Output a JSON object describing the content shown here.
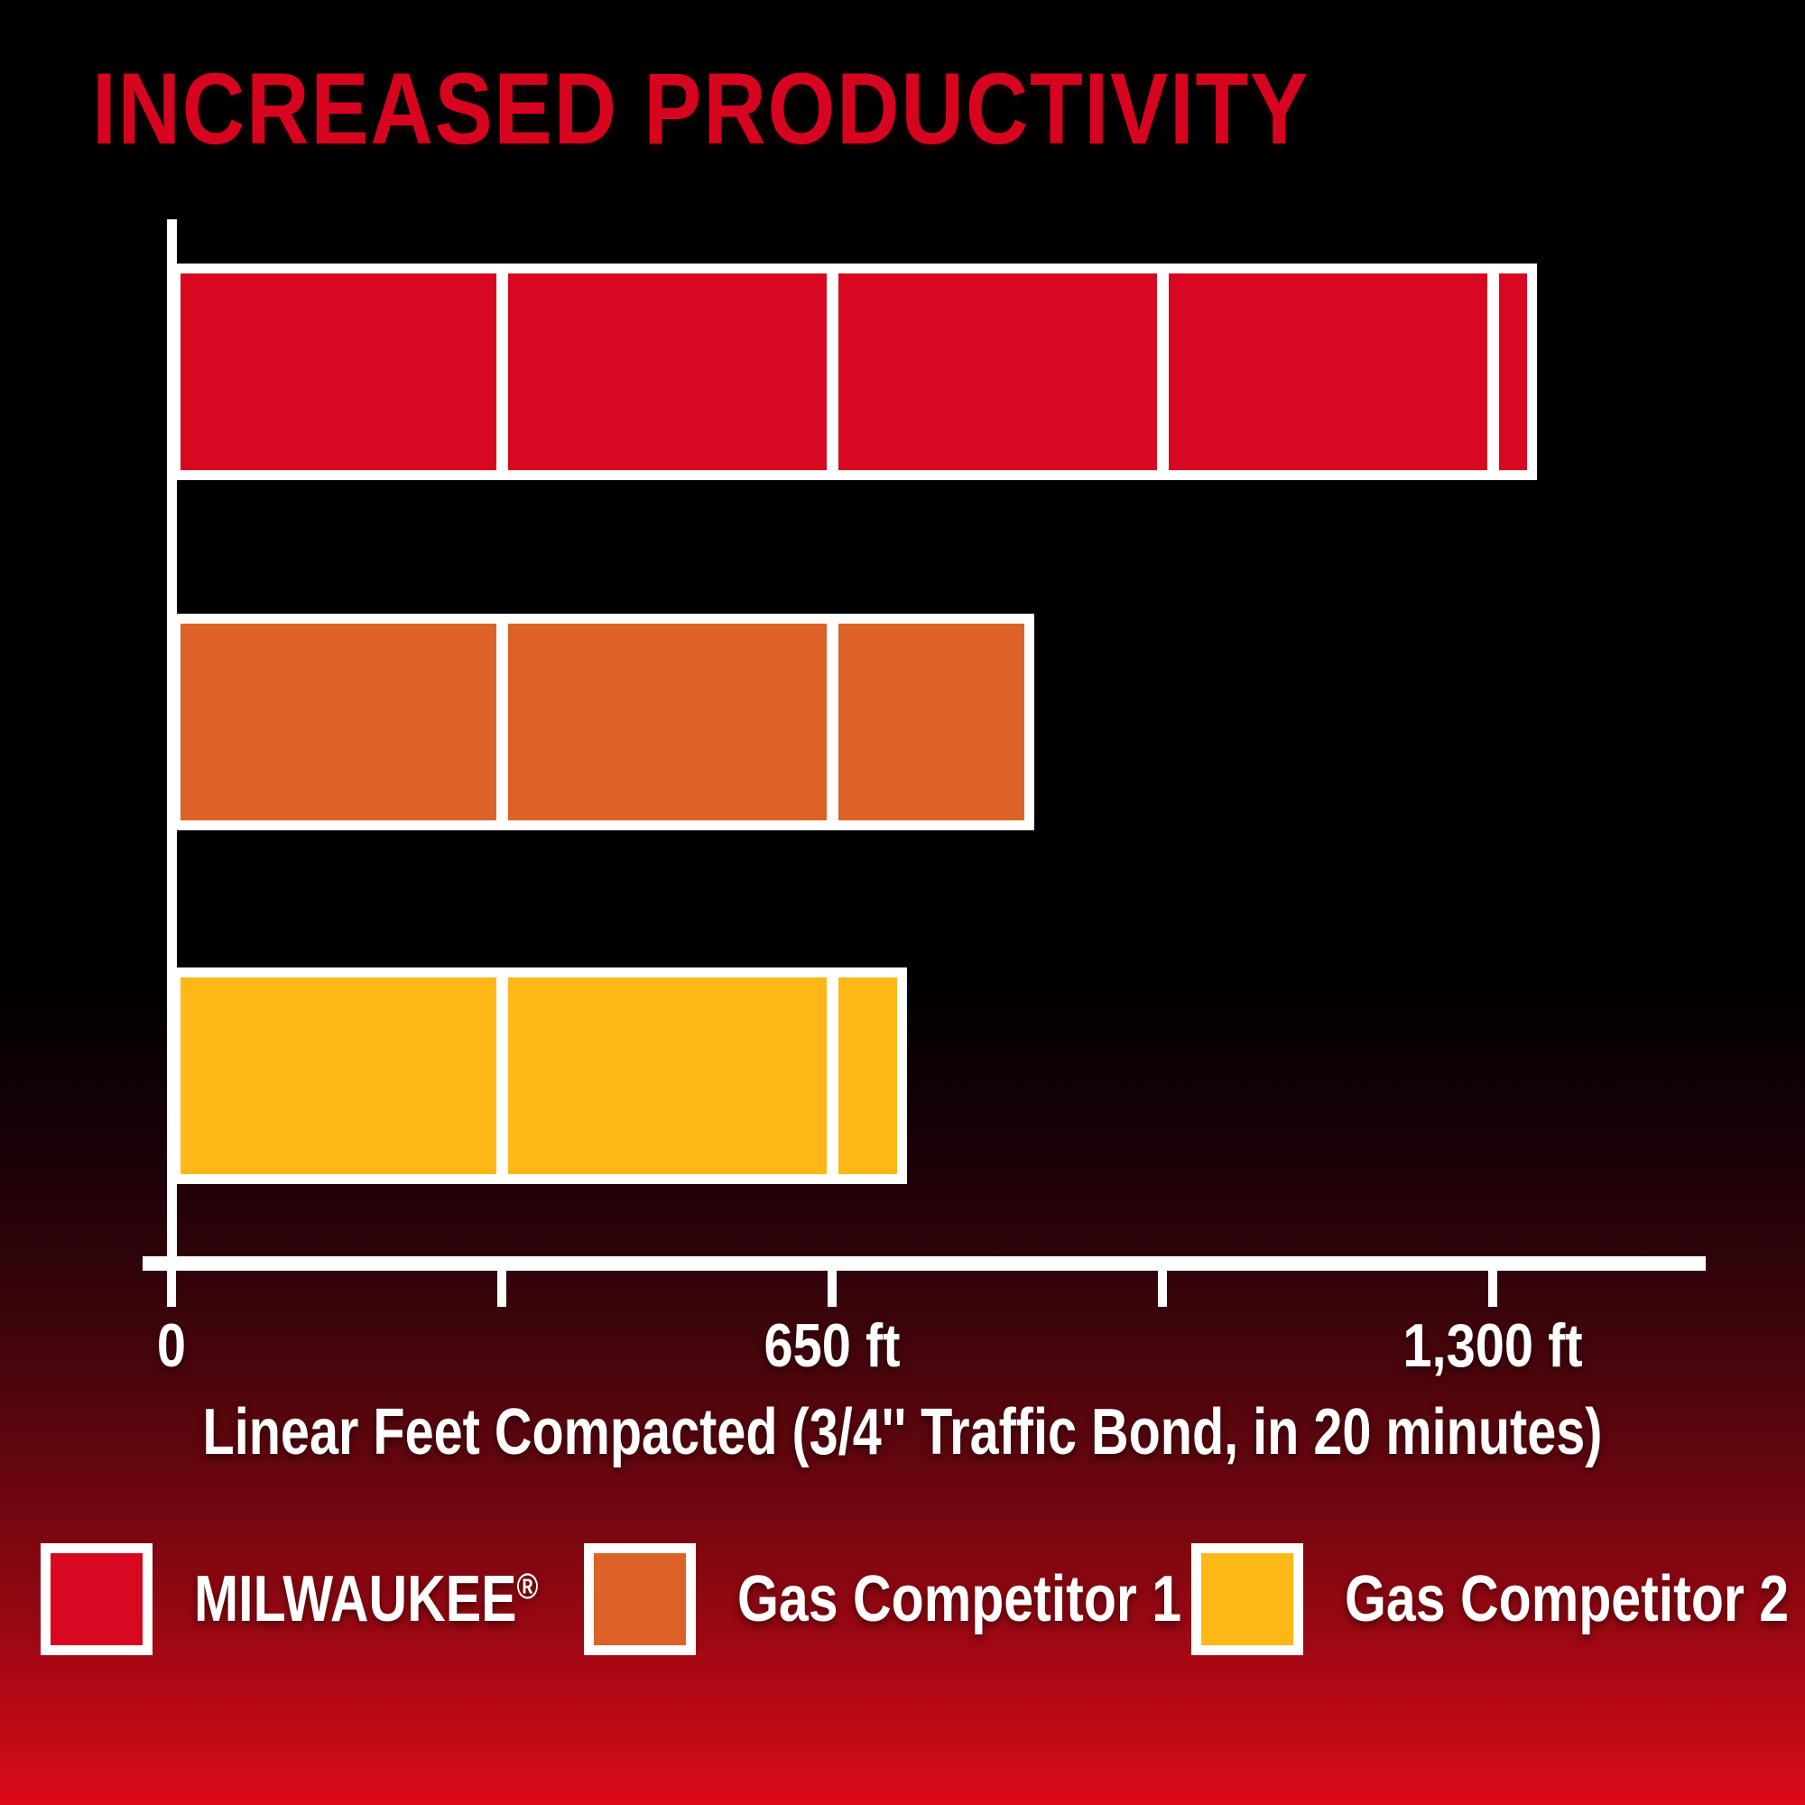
{
  "chart_data": {
    "type": "bar",
    "orientation": "horizontal",
    "title": "INCREASED PRODUCTIVITY",
    "xlabel": "Linear Feet Compacted (3/4'' Traffic Bond, in 20 minutes)",
    "unit": "ft",
    "categories": [
      "MILWAUKEE®",
      "Gas Competitor 1",
      "Gas Competitor 2"
    ],
    "values": [
      1325,
      830,
      705
    ],
    "bar_colors": [
      "#d7081f",
      "#dd6227",
      "#fdb817"
    ],
    "xlim": [
      0,
      1510
    ],
    "x_ticks": [
      {
        "value": 0,
        "label": "0"
      },
      {
        "value": 325,
        "label": ""
      },
      {
        "value": 650,
        "label": "650 ft"
      },
      {
        "value": 975,
        "label": ""
      },
      {
        "value": 1300,
        "label": "1,300 ft"
      }
    ],
    "gridlines_ft": [
      325,
      650,
      975,
      1300
    ],
    "grid_style": "white divider lines drawn across bars at each tick",
    "legend_position": "bottom",
    "legend": [
      {
        "label": "MILWAUKEE®",
        "color": "#d7081f"
      },
      {
        "label": "Gas Competitor 1",
        "color": "#dd6227"
      },
      {
        "label": "Gas Competitor 2",
        "color": "#fdb817"
      }
    ],
    "axis_color": "#ffffff",
    "title_color": "#d6041e",
    "text_color": "#ffffff",
    "background": {
      "top": "#000000",
      "bottom": "#dc0a19"
    }
  }
}
